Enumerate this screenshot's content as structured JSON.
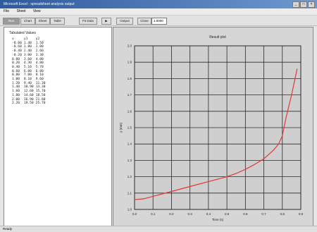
{
  "window": {
    "title": "Microsoft Excel - spreadsheet analysis output",
    "controls": [
      "_",
      "□",
      "×"
    ]
  },
  "menu": [
    "File",
    "Sheet",
    "View"
  ],
  "toolbar": {
    "buttons": [
      "Run",
      "Chart",
      "Sheet",
      "Table",
      "Fit Data",
      "▶",
      "Output",
      "Close"
    ],
    "field_value": "1.0000"
  },
  "left_panel": {
    "heading": "Tabulated Values",
    "columns": [
      "x",
      "y1",
      "y2"
    ],
    "rows": [
      [
        "-0.80",
        "1.40",
        "1.50"
      ],
      [
        "-0.60",
        "1.80",
        "2.00"
      ],
      [
        "-0.40",
        "2.40",
        "2.60"
      ],
      [
        "-0.20",
        "3.00",
        "3.30"
      ],
      [
        "0.00",
        "3.60",
        "4.00"
      ],
      [
        "0.20",
        "4.30",
        "4.80"
      ],
      [
        "0.40",
        "5.10",
        "5.70"
      ],
      [
        "0.60",
        "6.00",
        "6.80"
      ],
      [
        "0.80",
        "7.00",
        "8.10"
      ],
      [
        "1.00",
        "8.10",
        "9.60"
      ],
      [
        "1.20",
        "9.40",
        "11.30"
      ],
      [
        "1.40",
        "10.90",
        "13.30"
      ],
      [
        "1.60",
        "12.60",
        "15.70"
      ],
      [
        "1.80",
        "14.60",
        "18.50"
      ],
      [
        "2.00",
        "16.90",
        "21.80"
      ],
      [
        "2.20",
        "19.50",
        "25.70"
      ]
    ]
  },
  "chart": {
    "title": "Result plot",
    "xlabel": "Time (s)",
    "ylabel": "y (mm)",
    "line_color": "#e03838"
  },
  "chart_data": {
    "type": "line",
    "title": "Result plot",
    "xlabel": "Time (s)",
    "ylabel": "y (mm)",
    "x_ticks": [
      "0.0",
      "0.1",
      "0.2",
      "0.3",
      "0.4",
      "0.5",
      "0.6",
      "0.7",
      "0.8",
      "0.9"
    ],
    "y_ticks": [
      "1.0",
      "1.1",
      "1.2",
      "1.3",
      "1.4",
      "1.5",
      "1.6",
      "1.7",
      "1.8",
      "1.9",
      "2.0"
    ],
    "xlim": [
      0,
      0.9
    ],
    "ylim": [
      1.0,
      2.0
    ],
    "grid": true,
    "series": [
      {
        "x": [
          0.0,
          0.05,
          0.1,
          0.15,
          0.2,
          0.25,
          0.3,
          0.35,
          0.4,
          0.45,
          0.5,
          0.55,
          0.6,
          0.65,
          0.7,
          0.75,
          0.78,
          0.8,
          0.82,
          0.85,
          0.88
        ],
        "y": [
          1.06,
          1.065,
          1.08,
          1.095,
          1.11,
          1.125,
          1.14,
          1.155,
          1.17,
          1.185,
          1.2,
          1.22,
          1.245,
          1.275,
          1.31,
          1.36,
          1.4,
          1.45,
          1.56,
          1.7,
          1.86
        ]
      }
    ]
  },
  "status": {
    "left": "Ready",
    "right1": "",
    "right2": ""
  }
}
